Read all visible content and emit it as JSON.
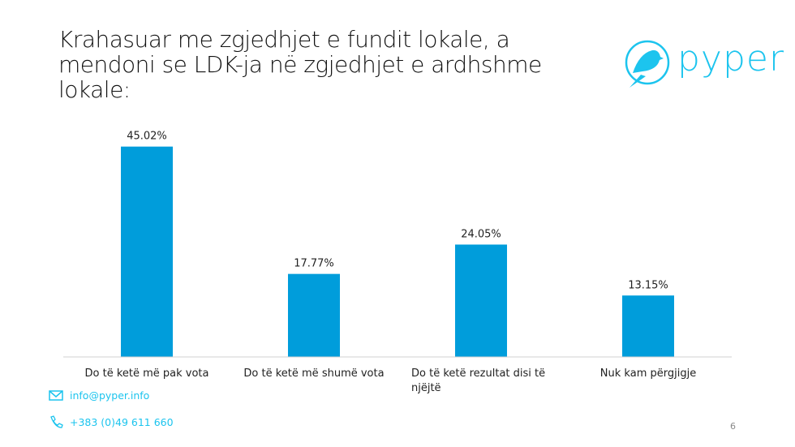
{
  "title": "Krahasuar me zgjedhjet e fundit lokale, a mendoni se LDK-ja në zgjedhjet e ardhshme lokale:",
  "logo": {
    "text": "pyper",
    "icon": "bird-in-circle-icon"
  },
  "contact": {
    "email": "info@pyper.info",
    "phone": "+383 (0)49 611 660"
  },
  "page_number": "6",
  "colors": {
    "bar": "#009ddb",
    "accent": "#1cc4ee"
  },
  "chart_data": {
    "type": "bar",
    "categories": [
      "Do të ketë më pak vota",
      "Do të ketë më shumë vota",
      "Do të ketë rezultat disi të njëjtë",
      "Nuk kam përgjigje"
    ],
    "values": [
      45.02,
      17.77,
      24.05,
      13.15
    ],
    "data_labels": [
      "45.02%",
      "17.77%",
      "24.05%",
      "13.15%"
    ],
    "ylim": [
      0,
      50
    ],
    "grid": false,
    "legend": "none"
  }
}
